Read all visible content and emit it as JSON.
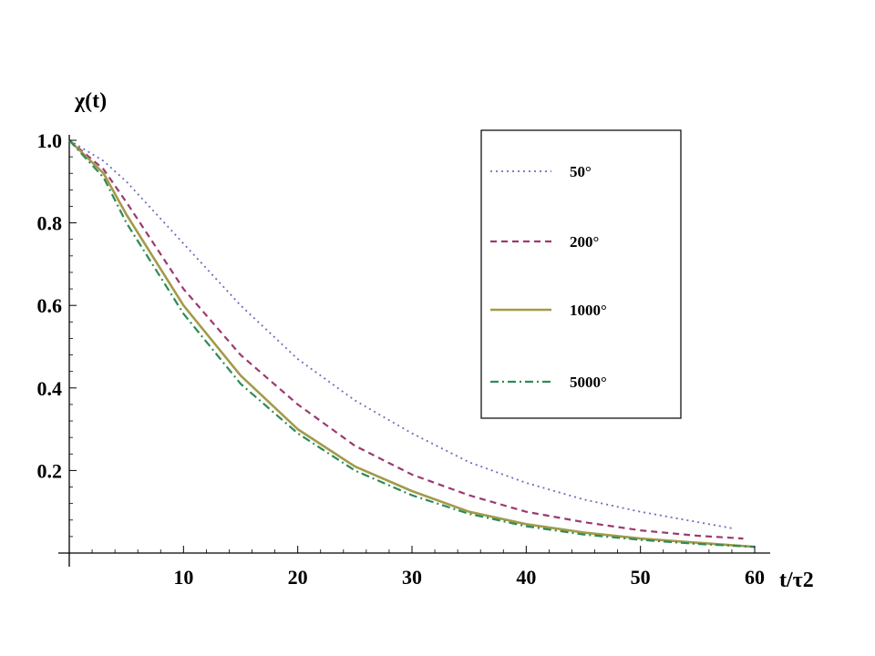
{
  "chart_data": {
    "type": "line",
    "ylabel": "χ(t)",
    "xlabel": "t/τ2",
    "xlim": [
      0,
      60
    ],
    "ylim": [
      0,
      1.0
    ],
    "xticks": [
      10,
      20,
      30,
      40,
      50,
      60
    ],
    "yticks": [
      0.2,
      0.4,
      0.6,
      0.8,
      1.0
    ],
    "grid": false,
    "legend_placement": "top-right",
    "series": [
      {
        "name": "50°",
        "style": "dotted",
        "color": "#6b6fb8",
        "x": [
          0,
          3,
          5,
          10,
          15,
          20,
          25,
          30,
          35,
          40,
          45,
          50,
          55,
          58
        ],
        "y": [
          1.0,
          0.95,
          0.9,
          0.75,
          0.6,
          0.47,
          0.37,
          0.29,
          0.22,
          0.17,
          0.13,
          0.1,
          0.075,
          0.06
        ]
      },
      {
        "name": "200°",
        "style": "dashed",
        "color": "#9b3a6f",
        "x": [
          0,
          3,
          5,
          10,
          15,
          20,
          25,
          30,
          35,
          40,
          45,
          50,
          55,
          59
        ],
        "y": [
          1.0,
          0.93,
          0.85,
          0.64,
          0.48,
          0.36,
          0.26,
          0.19,
          0.14,
          0.1,
          0.075,
          0.055,
          0.042,
          0.035
        ]
      },
      {
        "name": "1000°",
        "style": "solid",
        "color": "#a39a4b",
        "x": [
          0,
          3,
          5,
          10,
          15,
          20,
          25,
          30,
          35,
          40,
          45,
          50,
          55,
          60
        ],
        "y": [
          1.0,
          0.92,
          0.82,
          0.6,
          0.43,
          0.3,
          0.21,
          0.15,
          0.1,
          0.07,
          0.05,
          0.035,
          0.025,
          0.015
        ]
      },
      {
        "name": "5000°",
        "style": "dashdot",
        "color": "#2e8b57",
        "x": [
          0,
          3,
          5,
          10,
          15,
          20,
          25,
          30,
          35,
          40,
          45,
          50,
          55,
          60
        ],
        "y": [
          1.0,
          0.91,
          0.8,
          0.58,
          0.41,
          0.29,
          0.2,
          0.14,
          0.095,
          0.065,
          0.045,
          0.032,
          0.022,
          0.015
        ]
      }
    ]
  }
}
